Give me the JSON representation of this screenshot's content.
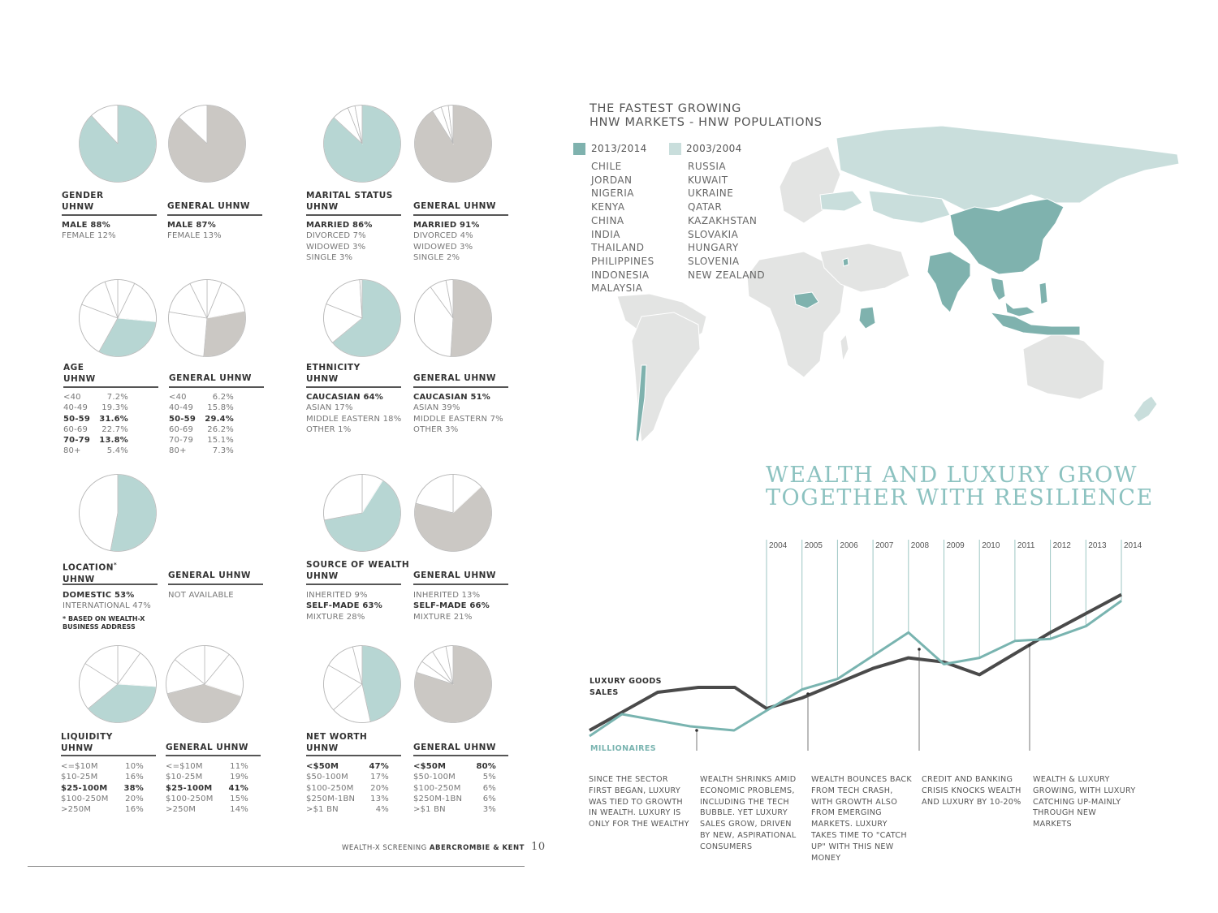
{
  "left": {
    "gender": {
      "title": "GENDER",
      "sub": "UHNW",
      "gen_title": "GENERAL UHNW",
      "uhnw_rows": [
        {
          "label": "MALE 88%",
          "bold": true
        },
        {
          "label": "FEMALE 12%",
          "bold": false
        }
      ],
      "gen_rows": [
        {
          "label": "MALE 87%",
          "bold": true
        },
        {
          "label": "FEMALE 13%",
          "bold": false
        }
      ],
      "uhnw_pie": [
        88,
        12
      ],
      "gen_pie": [
        87,
        13
      ]
    },
    "marital": {
      "title": "MARITAL STATUS",
      "sub": "UHNW",
      "gen_title": "GENERAL UHNW",
      "uhnw_rows": [
        {
          "label": "MARRIED 86%",
          "bold": true
        },
        {
          "label": "DIVORCED 7%",
          "bold": false
        },
        {
          "label": "WIDOWED 3%",
          "bold": false
        },
        {
          "label": "SINGLE 3%",
          "bold": false
        }
      ],
      "gen_rows": [
        {
          "label": "MARRIED 91%",
          "bold": true
        },
        {
          "label": "DIVORCED 4%",
          "bold": false
        },
        {
          "label": "WIDOWED 3%",
          "bold": false
        },
        {
          "label": "SINGLE 2%",
          "bold": false
        }
      ],
      "uhnw_pie": [
        86,
        7,
        3,
        3
      ],
      "gen_pie": [
        91,
        4,
        3,
        2
      ]
    },
    "age": {
      "title": "AGE",
      "sub": "UHNW",
      "gen_title": "GENERAL UHNW",
      "uhnw_rows": [
        {
          "k": "<40",
          "v": "7.2%",
          "bold": false
        },
        {
          "k": "40-49",
          "v": "19.3%",
          "bold": false
        },
        {
          "k": "50-59",
          "v": "31.6%",
          "bold": true
        },
        {
          "k": "60-69",
          "v": "22.7%",
          "bold": false
        },
        {
          "k": "70-79",
          "v": "13.8%",
          "bold": true
        },
        {
          "k": "80+",
          "v": "5.4%",
          "bold": false
        }
      ],
      "gen_rows": [
        {
          "k": "<40",
          "v": "6.2%",
          "bold": false
        },
        {
          "k": "40-49",
          "v": "15.8%",
          "bold": false
        },
        {
          "k": "50-59",
          "v": "29.4%",
          "bold": true
        },
        {
          "k": "60-69",
          "v": "26.2%",
          "bold": false
        },
        {
          "k": "70-79",
          "v": "15.1%",
          "bold": false
        },
        {
          "k": "80+",
          "v": "7.3%",
          "bold": false
        }
      ],
      "uhnw_pie": [
        7.2,
        19.3,
        31.6,
        22.7,
        13.8,
        5.4
      ],
      "uhnw_hl": 2,
      "gen_pie": [
        6.2,
        15.8,
        29.4,
        26.2,
        15.1,
        7.3
      ],
      "gen_hl": 2
    },
    "ethnicity": {
      "title": "ETHNICITY",
      "sub": "UHNW",
      "gen_title": "GENERAL UHNW",
      "uhnw_rows": [
        {
          "label": "CAUCASIAN 64%",
          "bold": true
        },
        {
          "label": "ASIAN 17%",
          "bold": false
        },
        {
          "label": "MIDDLE EASTERN 18%",
          "bold": false
        },
        {
          "label": "OTHER 1%",
          "bold": false
        }
      ],
      "gen_rows": [
        {
          "label": "CAUCASIAN 51%",
          "bold": true
        },
        {
          "label": "ASIAN 39%",
          "bold": false
        },
        {
          "label": "MIDDLE EASTERN 7%",
          "bold": false
        },
        {
          "label": "OTHER 3%",
          "bold": false
        }
      ],
      "uhnw_pie": [
        64,
        17,
        18,
        1
      ],
      "gen_pie": [
        51,
        39,
        7,
        3
      ]
    },
    "location": {
      "title": "LOCATION",
      "title_mark": "*",
      "sub": "UHNW",
      "gen_title": "GENERAL UHNW",
      "uhnw_rows": [
        {
          "label": "DOMESTIC 53%",
          "bold": true
        },
        {
          "label": "INTERNATIONAL 47%",
          "bold": false
        }
      ],
      "gen_text": "NOT AVAILABLE",
      "note": "* BASED ON WEALTH-X BUSINESS ADDRESS",
      "uhnw_pie": [
        53,
        47
      ]
    },
    "source": {
      "title": "SOURCE OF WEALTH",
      "sub": "UHNW",
      "gen_title": "GENERAL UHNW",
      "uhnw_rows": [
        {
          "label": "INHERITED 9%",
          "bold": false
        },
        {
          "label": "SELF-MADE 63%",
          "bold": true
        },
        {
          "label": "MIXTURE 28%",
          "bold": false
        }
      ],
      "gen_rows": [
        {
          "label": "INHERITED 13%",
          "bold": false
        },
        {
          "label": "SELF-MADE 66%",
          "bold": true
        },
        {
          "label": "MIXTURE 21%",
          "bold": false
        }
      ],
      "uhnw_pie": [
        9,
        63,
        28
      ],
      "uhnw_hl": 1,
      "gen_pie": [
        13,
        66,
        21
      ],
      "gen_hl": 1
    },
    "liquidity": {
      "title": "LIQUIDITY",
      "sub": "UHNW",
      "gen_title": "GENERAL UHNW",
      "uhnw_rows": [
        {
          "k": "<=$10M",
          "v": "10%",
          "bold": false
        },
        {
          "k": "$10-25M",
          "v": "16%",
          "bold": false
        },
        {
          "k": "$25-100M",
          "v": "38%",
          "bold": true
        },
        {
          "k": "$100-250M",
          "v": "20%",
          "bold": false
        },
        {
          "k": ">250M",
          "v": "16%",
          "bold": false
        }
      ],
      "gen_rows": [
        {
          "k": "<=$10M",
          "v": "11%",
          "bold": false
        },
        {
          "k": "$10-25M",
          "v": "19%",
          "bold": false
        },
        {
          "k": "$25-100M",
          "v": "41%",
          "bold": true
        },
        {
          "k": "$100-250M",
          "v": "15%",
          "bold": false
        },
        {
          "k": ">250M",
          "v": "14%",
          "bold": false
        }
      ],
      "uhnw_pie": [
        10,
        16,
        38,
        20,
        16
      ],
      "uhnw_hl": 2,
      "gen_pie": [
        11,
        19,
        41,
        15,
        14
      ],
      "gen_hl": 2
    },
    "networth": {
      "title": "NET WORTH",
      "sub": "UHNW",
      "gen_title": "GENERAL UHNW",
      "uhnw_rows": [
        {
          "k": "<$50M",
          "v": "47%",
          "bold": true
        },
        {
          "k": "$50-100M",
          "v": "17%",
          "bold": false
        },
        {
          "k": "$100-250M",
          "v": "20%",
          "bold": false
        },
        {
          "k": "$250M-1BN",
          "v": "13%",
          "bold": false
        },
        {
          "k": ">$1 BN",
          "v": "4%",
          "bold": false
        }
      ],
      "gen_rows": [
        {
          "k": "<$50M",
          "v": "80%",
          "bold": true
        },
        {
          "k": "$50-100M",
          "v": "5%",
          "bold": false
        },
        {
          "k": "$100-250M",
          "v": "6%",
          "bold": false
        },
        {
          "k": "$250M-1BN",
          "v": "6%",
          "bold": false
        },
        {
          "k": ">$1 BN",
          "v": "3%",
          "bold": false
        }
      ],
      "uhnw_pie": [
        47,
        17,
        20,
        13,
        4
      ],
      "gen_pie": [
        80,
        5,
        6,
        6,
        3
      ]
    },
    "footer": {
      "prefix": "WEALTH-X SCREENING",
      "brand": "ABERCROMBIE & KENT",
      "page": "10"
    }
  },
  "map": {
    "title_line1": "THE FASTEST GROWING",
    "title_line2": "HNW MARKETS - HNW POPULATIONS",
    "legend": [
      {
        "label": "2013/2014",
        "color": "#7fb2ae"
      },
      {
        "label": "2003/2004",
        "color": "#c9dedc"
      }
    ],
    "col_2013": [
      "CHILE",
      "JORDAN",
      "NIGERIA",
      "KENYA",
      "CHINA",
      "INDIA",
      "THAILAND",
      "PHILIPPINES",
      "INDONESIA",
      "MALAYSIA"
    ],
    "col_2003": [
      "RUSSIA",
      "KUWAIT",
      "UKRAINE",
      "QATAR",
      "KAZAKHSTAN",
      "SLOVAKIA",
      "HUNGARY",
      "SLOVENIA",
      "NEW ZEALAND"
    ]
  },
  "luxury": {
    "title_line1": "WEALTH AND LUXURY GROW",
    "title_line2": "TOGETHER WITH RESILIENCE",
    "series_labels": {
      "luxury": [
        "LUXURY GOODS",
        "SALES"
      ],
      "millionaires": "MILLIONAIRES"
    },
    "captions": [
      "SINCE THE SECTOR FIRST BEGAN, LUXURY WAS TIED TO GROWTH IN WEALTH. LUXURY IS ONLY FOR THE WEALTHY",
      "WEALTH SHRINKS AMID ECONOMIC PROBLEMS, INCLUDING THE TECH BUBBLE. YET LUXURY SALES GROW, DRIVEN BY NEW, ASPIRATIONAL CONSUMERS",
      "WEALTH BOUNCES BACK FROM TECH CRASH, WITH GROWTH ALSO FROM EMERGING MARKETS. LUXURY TAKES TIME TO \"CATCH UP\" WITH THIS NEW MONEY",
      "CREDIT AND BANKING CRISIS KNOCKS WEALTH AND LUXURY BY 10-20%",
      "WEALTH & LUXURY GROWING, WITH LUXURY CATCHING UP-MAINLY THROUGH NEW MARKETS"
    ]
  },
  "chart_data": {
    "type": "line",
    "x": [
      2004,
      2005,
      2006,
      2007,
      2008,
      2009,
      2010,
      2011,
      2012,
      2013,
      2014
    ],
    "tick_labels": [
      "2004",
      "2005",
      "2006",
      "2007",
      "2008",
      "2009",
      "2010",
      "2011",
      "2012",
      "2013",
      "2014"
    ],
    "series": [
      {
        "name": "LUXURY GOODS SALES",
        "color": "#4a4a4a",
        "values": [
          50,
          55,
          62,
          69,
          74,
          72,
          66,
          76,
          86,
          95,
          104
        ]
      },
      {
        "name": "MILLIONAIRES",
        "color": "#79b4b0",
        "values": [
          49,
          59,
          64,
          75,
          86,
          71,
          74,
          82,
          83,
          89,
          101
        ]
      }
    ],
    "grid": true,
    "legend": "inline-left"
  }
}
